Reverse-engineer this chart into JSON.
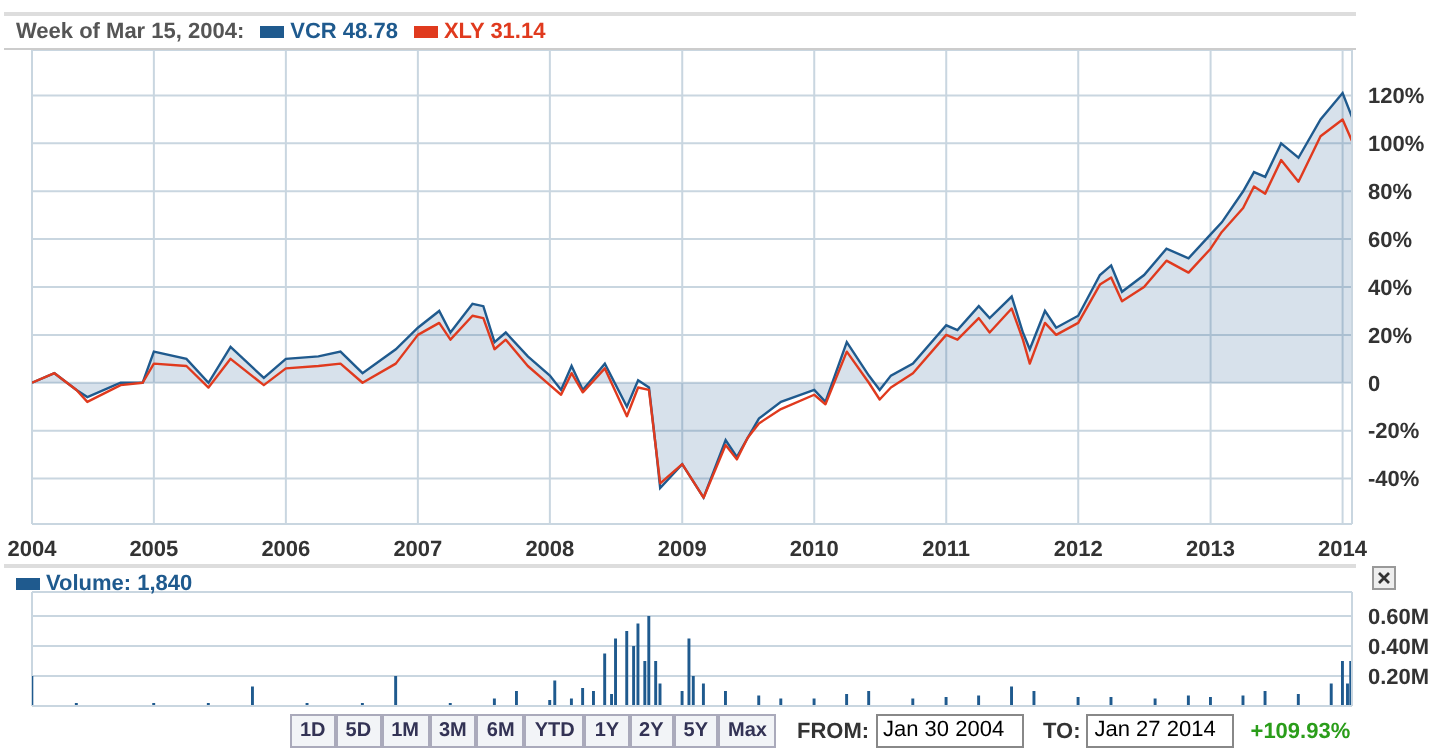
{
  "chart_data": [
    {
      "type": "line",
      "legend_title": "Week of Mar 15, 2004:",
      "legend": "top left",
      "grid": true,
      "x": [
        "2004-01-30",
        "2004-04",
        "2004-06",
        "2004-07",
        "2004-10",
        "2004-12",
        "2005-01",
        "2005-04",
        "2005-06",
        "2005-08",
        "2005-11",
        "2006-01",
        "2006-04",
        "2006-06",
        "2006-08",
        "2006-11",
        "2007-01",
        "2007-03",
        "2007-04",
        "2007-06",
        "2007-07",
        "2007-08",
        "2007-09",
        "2007-11",
        "2008-01",
        "2008-02",
        "2008-03",
        "2008-04",
        "2008-06",
        "2008-08",
        "2008-09",
        "2008-10-01",
        "2008-10-20",
        "2008-11",
        "2009-01",
        "2009-03",
        "2009-05",
        "2009-06",
        "2009-07",
        "2009-08",
        "2009-10",
        "2010-01",
        "2010-02",
        "2010-04",
        "2010-06",
        "2010-07",
        "2010-08",
        "2010-10",
        "2011-01",
        "2011-02",
        "2011-04",
        "2011-05",
        "2011-07",
        "2011-08-01",
        "2011-08-20",
        "2011-10",
        "2011-11",
        "2012-01",
        "2012-03",
        "2012-04",
        "2012-05",
        "2012-07",
        "2012-09",
        "2012-11",
        "2013-01",
        "2013-02",
        "2013-04",
        "2013-05",
        "2013-06",
        "2013-07-15",
        "2013-09",
        "2013-11",
        "2014-01-01",
        "2014-01-27"
      ],
      "series": [
        {
          "name": "VCR 48.78",
          "type": "area",
          "color": "#1f5a8e",
          "values": [
            0,
            4,
            -3,
            -6,
            0,
            0,
            13,
            10,
            0,
            15,
            2,
            10,
            11,
            13,
            4,
            14,
            23,
            30,
            21,
            33,
            32,
            17,
            21,
            11,
            3,
            -3,
            7,
            -3,
            8,
            -10,
            1,
            -2,
            -27,
            -44,
            -34,
            -48,
            -24,
            -31,
            -23,
            -15,
            -8,
            -3,
            -8,
            17,
            3,
            -3,
            3,
            8,
            24,
            22,
            32,
            27,
            36,
            21,
            14,
            30,
            23,
            28,
            45,
            49,
            38,
            45,
            56,
            52,
            62,
            67,
            80,
            88,
            86,
            100,
            94,
            110,
            121,
            111
          ]
        },
        {
          "name": "XLY 31.14",
          "type": "line",
          "color": "#e03a1e",
          "values": [
            0,
            4,
            -3,
            -8,
            -1,
            0,
            8,
            7,
            -2,
            10,
            -1,
            6,
            7,
            8,
            0,
            8,
            20,
            25,
            18,
            28,
            27,
            14,
            18,
            7,
            -1,
            -5,
            4,
            -4,
            6,
            -14,
            -2,
            -3,
            -27,
            -42,
            -34,
            -48,
            -26,
            -32,
            -23,
            -17,
            -11,
            -5,
            -9,
            13,
            0,
            -7,
            -2,
            4,
            20,
            18,
            27,
            21,
            31,
            18,
            8,
            25,
            20,
            25,
            41,
            44,
            34,
            40,
            51,
            46,
            56,
            63,
            73,
            82,
            79,
            93,
            84,
            103,
            110,
            101
          ]
        }
      ],
      "xlim": [
        "2004-01-30",
        "2014-01-27"
      ],
      "xticks": [
        {
          "value": "2004-01-30",
          "label": "2004"
        },
        "2005",
        "2006",
        "2007",
        "2008",
        "2009",
        "2010",
        "2011",
        "2012",
        "2013",
        "2014"
      ],
      "ylim": [
        -59,
        139
      ],
      "yticks": [
        {
          "value": -40,
          "label": "-40%"
        },
        {
          "value": -20,
          "label": "-20%"
        },
        0,
        {
          "value": 20,
          "label": "20%"
        },
        {
          "value": 40,
          "label": "40%"
        },
        {
          "value": 60,
          "label": "60%"
        },
        {
          "value": 80,
          "label": "80%"
        },
        {
          "value": 100,
          "label": "100%"
        },
        {
          "value": 120,
          "label": "120%"
        }
      ]
    },
    {
      "type": "bar",
      "legend": "top left",
      "grid": true,
      "tick_labels": "y",
      "x": [
        "2004-01-30",
        "2004-06",
        "2005-01",
        "2005-06",
        "2005-10",
        "2006-03",
        "2006-08",
        "2006-11",
        "2007-04",
        "2007-08",
        "2007-10",
        "2008-01",
        "2008-01-15",
        "2008-03",
        "2008-04",
        "2008-05",
        "2008-06",
        "2008-06-20",
        "2008-07",
        "2008-08",
        "2008-08-20",
        "2008-09",
        "2008-09-20",
        "2008-10",
        "2008-10-20",
        "2008-11",
        "2009-01",
        "2009-01-20",
        "2009-02",
        "2009-03",
        "2009-05",
        "2009-08",
        "2009-10",
        "2010-01",
        "2010-04",
        "2010-06",
        "2010-10",
        "2011-01",
        "2011-04",
        "2011-07",
        "2011-09",
        "2012-01",
        "2012-04",
        "2012-08",
        "2012-11",
        "2013-01",
        "2013-04",
        "2013-06",
        "2013-09",
        "2013-12",
        "2014-01",
        "2014-01-15",
        "2014-01-24"
      ],
      "series": [
        {
          "name": "Volume: 1,840",
          "color": "#1f5a8e",
          "values": [
            0.2,
            0.02,
            0.02,
            0.02,
            0.13,
            0.02,
            0.02,
            0.2,
            0.02,
            0.05,
            0.1,
            0.04,
            0.17,
            0.05,
            0.12,
            0.1,
            0.35,
            0.08,
            0.45,
            0.5,
            0.4,
            0.55,
            0.3,
            0.6,
            0.3,
            0.15,
            0.1,
            0.45,
            0.2,
            0.15,
            0.1,
            0.07,
            0.05,
            0.05,
            0.08,
            0.1,
            0.05,
            0.06,
            0.07,
            0.13,
            0.1,
            0.06,
            0.06,
            0.05,
            0.07,
            0.06,
            0.07,
            0.1,
            0.08,
            0.15,
            0.3,
            0.15,
            0.3
          ]
        }
      ],
      "xlim": [
        "2004-01-30",
        "2014-01-27"
      ],
      "xticks": [
        {
          "value": "2004-01-30",
          "label": null
        },
        {
          "value": "2005",
          "label": null
        },
        {
          "value": "2006",
          "label": null
        },
        {
          "value": "2007",
          "label": null
        },
        {
          "value": "2008",
          "label": null
        },
        {
          "value": "2009",
          "label": null
        },
        {
          "value": "2010",
          "label": null
        },
        {
          "value": "2011",
          "label": null
        },
        {
          "value": "2012",
          "label": null
        },
        {
          "value": "2013",
          "label": null
        },
        {
          "value": "2014",
          "label": null
        }
      ],
      "ylim": [
        0,
        0.76
      ],
      "yticks": [
        {
          "value": 0.2,
          "label": "0.20M"
        },
        {
          "value": 0.4,
          "label": "0.40M"
        },
        {
          "value": 0.6,
          "label": "0.60M"
        }
      ]
    },
    {
      "type": "other",
      "annotations": [
        "1D",
        "5D",
        "1M",
        "3M",
        "6M",
        "YTD",
        "1Y",
        "2Y",
        "5Y",
        "Max",
        "FROM:",
        "Jan 30 2004",
        "TO:",
        "Jan 27 2014",
        "+109.93%"
      ]
    }
  ]
}
